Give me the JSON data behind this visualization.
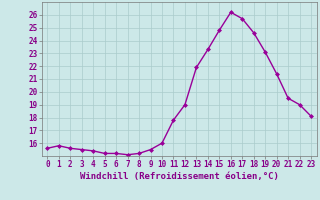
{
  "x": [
    0,
    1,
    2,
    3,
    4,
    5,
    6,
    7,
    8,
    9,
    10,
    11,
    12,
    13,
    14,
    15,
    16,
    17,
    18,
    19,
    20,
    21,
    22,
    23
  ],
  "y": [
    15.6,
    15.8,
    15.6,
    15.5,
    15.4,
    15.2,
    15.2,
    15.1,
    15.2,
    15.5,
    16.0,
    17.8,
    19.0,
    21.9,
    23.3,
    24.8,
    26.2,
    25.7,
    24.6,
    23.1,
    21.4,
    19.5,
    19.0,
    18.1
  ],
  "line_color": "#990099",
  "marker": "D",
  "marker_size": 2.0,
  "bg_color": "#cce8e8",
  "grid_color": "#aacccc",
  "xlabel": "Windchill (Refroidissement éolien,°C)",
  "tick_color": "#880088",
  "ylim": [
    15,
    27
  ],
  "xlim": [
    -0.5,
    23.5
  ],
  "yticks": [
    16,
    17,
    18,
    19,
    20,
    21,
    22,
    23,
    24,
    25,
    26
  ],
  "xticks": [
    0,
    1,
    2,
    3,
    4,
    5,
    6,
    7,
    8,
    9,
    10,
    11,
    12,
    13,
    14,
    15,
    16,
    17,
    18,
    19,
    20,
    21,
    22,
    23
  ],
  "tick_fontsize": 5.5,
  "xlabel_fontsize": 6.5,
  "linewidth": 1.0
}
